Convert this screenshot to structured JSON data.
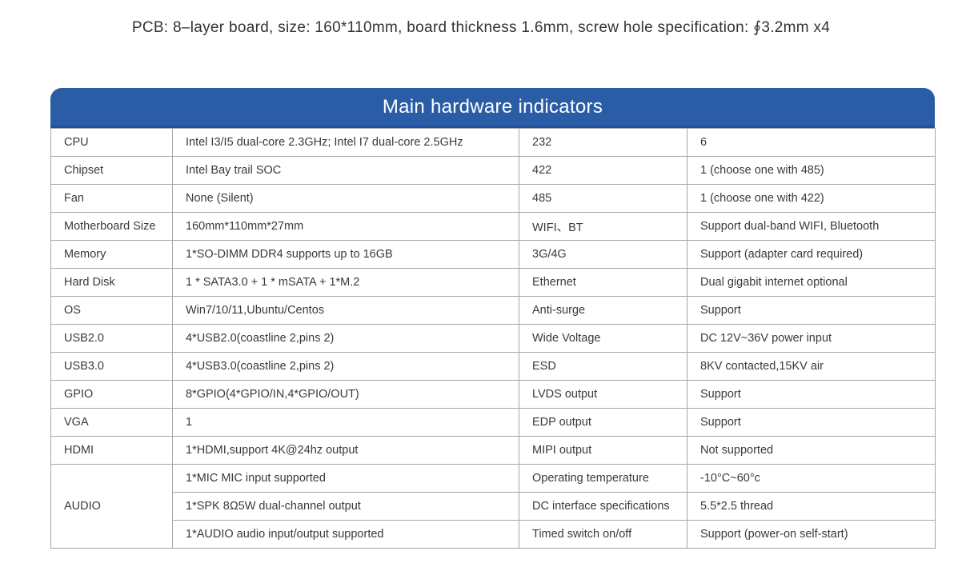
{
  "page": {
    "title": "PCB: 8–layer board, size: 160*110mm, board thickness 1.6mm, screw hole specification:  ∮3.2mm x4"
  },
  "colors": {
    "header_bg": "#2b5da7",
    "header_bg_edge": "#1f4f9d",
    "header_text": "#ffffff",
    "table_border": "#a6a6a6",
    "body_text": "#3a3a3a"
  },
  "table": {
    "header": "Main hardware indicators",
    "rows": [
      {
        "label": "CPU",
        "value": "Intel I3/I5 dual-core 2.3GHz; Intel I7 dual-core 2.5GHz",
        "label2": "232",
        "value2": "6"
      },
      {
        "label": "Chipset",
        "value": "Intel Bay trail SOC",
        "label2": "422",
        "value2": "1 (choose one with 485)"
      },
      {
        "label": "Fan",
        "value": "None (Silent)",
        "label2": "485",
        "value2": "1 (choose one with 422)"
      },
      {
        "label": "Motherboard Size",
        "value": "160mm*110mm*27mm",
        "label2": "WIFI、BT",
        "value2": "Support dual-band WIFI, Bluetooth"
      },
      {
        "label": "Memory",
        "value": "1*SO-DIMM DDR4 supports up to 16GB",
        "label2": "3G/4G",
        "value2": "Support (adapter card required)"
      },
      {
        "label": "Hard Disk",
        "value": "1 * SATA3.0 + 1 * mSATA + 1*M.2",
        "label2": "Ethernet",
        "value2": "Dual gigabit internet optional"
      },
      {
        "label": "OS",
        "value": "Win7/10/11,Ubuntu/Centos",
        "label2": "Anti-surge",
        "value2": "Support"
      },
      {
        "label": "USB2.0",
        "value": "4*USB2.0(coastline 2,pins 2)",
        "label2": "Wide Voltage",
        "value2": "DC 12V~36V power input"
      },
      {
        "label": "USB3.0",
        "value": "4*USB3.0(coastline 2,pins 2)",
        "label2": "ESD",
        "value2": "8KV contacted,15KV air"
      },
      {
        "label": "GPIO",
        "value": "8*GPIO(4*GPIO/IN,4*GPIO/OUT)",
        "label2": "LVDS output",
        "value2": "Support"
      },
      {
        "label": "VGA",
        "value": "1",
        "label2": "EDP output",
        "value2": "Support"
      },
      {
        "label": "HDMI",
        "value": "1*HDMI,support 4K@24hz output",
        "label2": "MIPI output",
        "value2": "Not supported"
      },
      {
        "label": "AUDIO",
        "value": "1*MIC MIC input supported",
        "label2": "Operating temperature",
        "value2": "-10°C~60°c"
      },
      {
        "value": "1*SPK 8Ω5W dual-channel output",
        "label2": "DC interface specifications",
        "value2": "5.5*2.5 thread"
      },
      {
        "value": "1*AUDIO audio input/output supported",
        "label2": "Timed switch on/off",
        "value2": "Support (power-on self-start)"
      }
    ]
  }
}
